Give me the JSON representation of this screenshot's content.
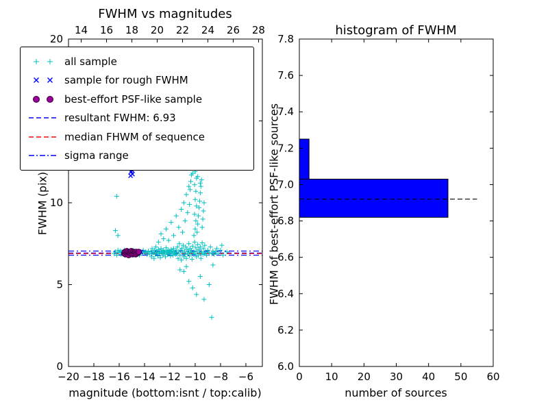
{
  "figure": {
    "background": "#ffffff",
    "frame_color": "#000000",
    "text_color": "#000000"
  },
  "chart_data": [
    {
      "type": "scatter",
      "title": "FWHM vs magnitudes",
      "xlabel": "magnitude (bottom:isnt / top:calib)",
      "ylabel": "FWHM (pix)",
      "x_range": [
        -20,
        -4.7
      ],
      "x_top_range": [
        13.0,
        28.3
      ],
      "y_range": [
        0,
        20
      ],
      "x_ticks": [
        -20,
        -18,
        -16,
        -14,
        -12,
        -10,
        -8,
        -6
      ],
      "x_top_ticks": [
        14,
        16,
        18,
        20,
        22,
        24,
        26,
        28
      ],
      "y_ticks": [
        0,
        5,
        10,
        15,
        20
      ],
      "y_tick_decimals": 0,
      "grid": false,
      "legend_position": "upper left",
      "legend": [
        {
          "label": "all sample",
          "type": "scatter-plus",
          "color": "#00bfbf"
        },
        {
          "label": "sample for rough FWHM",
          "type": "scatter-x",
          "color": "#0000ff"
        },
        {
          "label": "best-effort PSF-like sample",
          "type": "scatter-circle",
          "color": "#990099"
        },
        {
          "label": "resultant FWHM: 6.93",
          "type": "line-dashed",
          "color": "#0000ff"
        },
        {
          "label": "median FHWM of sequence",
          "type": "line-dashed",
          "color": "#ff0000"
        },
        {
          "label": "sigma range",
          "type": "line-dashdot",
          "color": "#0000ff"
        }
      ],
      "hlines": [
        {
          "name": "resultant-fwhm",
          "value": 6.93,
          "style": "dashed",
          "color": "#0000ff"
        },
        {
          "name": "median-fwhm-of-sequence",
          "value": 6.9,
          "style": "dashed",
          "color": "#ff0000"
        },
        {
          "name": "sigma-range-low",
          "value": 6.8,
          "style": "dashdot",
          "color": "#0000ff"
        },
        {
          "name": "sigma-range-high",
          "value": 7.05,
          "style": "dashdot",
          "color": "#0000ff"
        }
      ],
      "series": [
        {
          "name": "all sample",
          "marker": "plus",
          "color": "#00bfbf",
          "points": [
            [
              -16.4,
              6.9
            ],
            [
              -16.3,
              7.0
            ],
            [
              -16.2,
              6.8
            ],
            [
              -16.1,
              7.1
            ],
            [
              -16.0,
              6.95
            ],
            [
              -15.9,
              7.05
            ],
            [
              -15.85,
              6.85
            ],
            [
              -15.8,
              7.0
            ],
            [
              -15.7,
              6.9
            ],
            [
              -15.6,
              7.1
            ],
            [
              -15.55,
              6.8
            ],
            [
              -15.5,
              7.0
            ],
            [
              -15.4,
              6.95
            ],
            [
              -15.3,
              7.05
            ],
            [
              -15.2,
              6.9
            ],
            [
              -15.1,
              7.0
            ],
            [
              -15.0,
              6.85
            ],
            [
              -14.9,
              7.1
            ],
            [
              -14.8,
              6.95
            ],
            [
              -14.7,
              7.0
            ],
            [
              -14.6,
              6.9
            ],
            [
              -14.5,
              7.05
            ],
            [
              -14.4,
              6.8
            ],
            [
              -14.3,
              7.0
            ],
            [
              -14.2,
              6.9
            ],
            [
              -14.1,
              7.1
            ],
            [
              -14.0,
              6.95
            ],
            [
              -13.9,
              7.0
            ],
            [
              -13.8,
              6.85
            ],
            [
              -13.7,
              7.05
            ],
            [
              -13.6,
              6.9
            ],
            [
              -13.5,
              7.0
            ],
            [
              -13.45,
              6.7
            ],
            [
              -13.4,
              7.2
            ],
            [
              -13.35,
              6.9
            ],
            [
              -13.3,
              7.0
            ],
            [
              -13.25,
              6.6
            ],
            [
              -13.2,
              7.1
            ],
            [
              -13.15,
              6.85
            ],
            [
              -13.1,
              7.3
            ],
            [
              -13.05,
              6.95
            ],
            [
              -13.0,
              7.0
            ],
            [
              -12.95,
              6.75
            ],
            [
              -12.9,
              7.15
            ],
            [
              -12.85,
              6.9
            ],
            [
              -12.8,
              7.0
            ],
            [
              -12.75,
              6.65
            ],
            [
              -12.7,
              7.2
            ],
            [
              -12.65,
              6.95
            ],
            [
              -12.6,
              7.05
            ],
            [
              -12.55,
              6.8
            ],
            [
              -12.5,
              7.1
            ],
            [
              -12.45,
              6.9
            ],
            [
              -12.4,
              7.0
            ],
            [
              -12.35,
              6.7
            ],
            [
              -12.3,
              7.25
            ],
            [
              -12.25,
              6.95
            ],
            [
              -12.2,
              7.05
            ],
            [
              -12.15,
              6.85
            ],
            [
              -12.1,
              7.1
            ],
            [
              -12.05,
              6.9
            ],
            [
              -12.0,
              7.0
            ],
            [
              -11.95,
              6.75
            ],
            [
              -11.9,
              7.15
            ],
            [
              -11.85,
              6.95
            ],
            [
              -11.8,
              7.05
            ],
            [
              -11.75,
              6.8
            ],
            [
              -11.7,
              7.2
            ],
            [
              -11.65,
              6.9
            ],
            [
              -11.6,
              7.0
            ],
            [
              -11.55,
              6.85
            ],
            [
              -11.5,
              7.1
            ],
            [
              -11.45,
              6.9
            ],
            [
              -11.4,
              7.3
            ],
            [
              -11.35,
              6.6
            ],
            [
              -11.3,
              7.0
            ],
            [
              -11.25,
              7.5
            ],
            [
              -11.2,
              6.8
            ],
            [
              -11.15,
              7.1
            ],
            [
              -11.1,
              6.5
            ],
            [
              -11.05,
              7.2
            ],
            [
              -11.0,
              6.95
            ],
            [
              -10.95,
              7.4
            ],
            [
              -10.9,
              6.7
            ],
            [
              -10.85,
              7.05
            ],
            [
              -10.8,
              6.85
            ],
            [
              -10.75,
              7.3
            ],
            [
              -10.7,
              6.6
            ],
            [
              -10.65,
              7.15
            ],
            [
              -10.6,
              6.9
            ],
            [
              -10.55,
              7.0
            ],
            [
              -10.5,
              7.5
            ],
            [
              -10.45,
              6.75
            ],
            [
              -10.4,
              7.2
            ],
            [
              -10.35,
              6.95
            ],
            [
              -10.3,
              7.1
            ],
            [
              -10.25,
              6.55
            ],
            [
              -10.2,
              7.35
            ],
            [
              -10.15,
              6.85
            ],
            [
              -10.1,
              7.0
            ],
            [
              -10.05,
              7.6
            ],
            [
              -10.0,
              6.9
            ],
            [
              -9.95,
              7.25
            ],
            [
              -9.9,
              6.7
            ],
            [
              -9.85,
              7.05
            ],
            [
              -9.8,
              7.45
            ],
            [
              -9.75,
              6.8
            ],
            [
              -9.7,
              7.15
            ],
            [
              -9.65,
              6.95
            ],
            [
              -9.6,
              7.3
            ],
            [
              -9.55,
              6.6
            ],
            [
              -9.5,
              7.0
            ],
            [
              -9.45,
              7.55
            ],
            [
              -9.4,
              6.85
            ],
            [
              -9.35,
              7.2
            ],
            [
              -9.3,
              6.9
            ],
            [
              -9.25,
              7.4
            ],
            [
              -9.2,
              7.0
            ],
            [
              -9.1,
              6.8
            ],
            [
              -9.0,
              7.1
            ],
            [
              -8.9,
              6.95
            ],
            [
              -8.8,
              7.3
            ],
            [
              -8.7,
              6.9
            ],
            [
              -8.6,
              7.05
            ],
            [
              -8.5,
              6.85
            ],
            [
              -8.4,
              7.0
            ],
            [
              -10.1,
              8.0
            ],
            [
              -10.0,
              8.4
            ],
            [
              -9.95,
              8.9
            ],
            [
              -10.05,
              9.3
            ],
            [
              -9.9,
              9.8
            ],
            [
              -10.0,
              10.2
            ],
            [
              -9.95,
              10.7
            ],
            [
              -10.05,
              11.1
            ],
            [
              -9.9,
              11.5
            ],
            [
              -10.0,
              11.9
            ],
            [
              -9.85,
              8.2
            ],
            [
              -9.8,
              8.7
            ],
            [
              -9.75,
              9.2
            ],
            [
              -9.7,
              9.7
            ],
            [
              -9.65,
              10.1
            ],
            [
              -9.6,
              10.6
            ],
            [
              -9.55,
              11.0
            ],
            [
              -9.5,
              11.4
            ],
            [
              -9.45,
              8.5
            ],
            [
              -9.4,
              9.0
            ],
            [
              -9.35,
              9.5
            ],
            [
              -9.3,
              10.0
            ],
            [
              -12.9,
              7.6
            ],
            [
              -12.7,
              8.1
            ],
            [
              -12.5,
              7.8
            ],
            [
              -12.3,
              8.4
            ],
            [
              -12.1,
              7.7
            ],
            [
              -11.9,
              8.8
            ],
            [
              -11.7,
              8.0
            ],
            [
              -11.5,
              9.2
            ],
            [
              -11.3,
              8.5
            ],
            [
              -11.1,
              9.6
            ],
            [
              -11.0,
              8.2
            ],
            [
              -10.9,
              10.0
            ],
            [
              -10.8,
              8.9
            ],
            [
              -10.7,
              10.5
            ],
            [
              -10.6,
              9.4
            ],
            [
              -10.5,
              11.0
            ],
            [
              -10.45,
              9.9
            ],
            [
              -10.4,
              10.8
            ],
            [
              -10.35,
              11.3
            ],
            [
              -10.3,
              11.7
            ],
            [
              -10.2,
              11.8
            ],
            [
              -9.8,
              11.6
            ],
            [
              -9.6,
              11.2
            ],
            [
              -10.9,
              5.8
            ],
            [
              -10.5,
              5.2
            ],
            [
              -10.2,
              4.8
            ],
            [
              -9.9,
              4.4
            ],
            [
              -9.6,
              5.5
            ],
            [
              -9.3,
              4.1
            ],
            [
              -8.7,
              3.0
            ],
            [
              -10.7,
              6.1
            ],
            [
              -11.2,
              5.9
            ],
            [
              -8.9,
              5.0
            ],
            [
              -8.6,
              6.2
            ],
            [
              -16.2,
              10.4
            ],
            [
              -16.3,
              8.3
            ],
            [
              -16.1,
              8.0
            ],
            [
              -8.2,
              6.9
            ],
            [
              -8.0,
              7.1
            ],
            [
              -7.8,
              6.8
            ],
            [
              -7.5,
              7.0
            ],
            [
              -7.9,
              7.4
            ],
            [
              -8.3,
              7.2
            ]
          ]
        },
        {
          "name": "sample for rough FWHM",
          "marker": "x",
          "color": "#0000ff",
          "points": [
            [
              -15.05,
              11.9
            ],
            [
              -14.95,
              11.75
            ],
            [
              -15.1,
              11.65
            ],
            [
              -15.0,
              12.0
            ],
            [
              -15.35,
              7.0
            ],
            [
              -15.1,
              6.95
            ],
            [
              -14.8,
              7.05
            ],
            [
              -14.55,
              6.9
            ],
            [
              -14.3,
              7.0
            ]
          ]
        },
        {
          "name": "best-effort PSF-like sample",
          "marker": "circle",
          "color": "#990099",
          "edge": "#3a003a",
          "points": [
            [
              -15.6,
              6.9
            ],
            [
              -15.55,
              7.0
            ],
            [
              -15.5,
              6.85
            ],
            [
              -15.45,
              6.95
            ],
            [
              -15.4,
              7.05
            ],
            [
              -15.35,
              6.9
            ],
            [
              -15.3,
              7.0
            ],
            [
              -15.25,
              6.8
            ],
            [
              -15.2,
              6.95
            ],
            [
              -15.15,
              7.0
            ],
            [
              -15.1,
              6.9
            ],
            [
              -15.05,
              7.05
            ],
            [
              -15.0,
              6.95
            ],
            [
              -14.95,
              6.85
            ],
            [
              -14.9,
              7.0
            ],
            [
              -14.85,
              6.9
            ],
            [
              -14.8,
              7.0
            ],
            [
              -14.75,
              6.95
            ],
            [
              -14.7,
              6.85
            ],
            [
              -14.65,
              7.0
            ],
            [
              -14.6,
              6.9
            ],
            [
              -14.5,
              6.95
            ],
            [
              -14.45,
              7.0
            ]
          ]
        }
      ]
    },
    {
      "type": "bar",
      "orientation": "horizontal",
      "title": "histogram of FWHM",
      "xlabel": "number of sources",
      "ylabel": "FWHM of best-effort PSF-like sources",
      "x_range": [
        0,
        60
      ],
      "y_range": [
        6.0,
        7.8
      ],
      "x_ticks": [
        0,
        10,
        20,
        30,
        40,
        50,
        60
      ],
      "y_ticks": [
        6.0,
        6.2,
        6.4,
        6.6,
        6.8,
        7.0,
        7.2,
        7.4,
        7.6,
        7.8
      ],
      "y_tick_decimals": 1,
      "grid": false,
      "bar_color": "#0000ff",
      "bar_edge": "#000000",
      "bins": [
        {
          "fwhm_from": 6.82,
          "fwhm_to": 7.03,
          "count": 46
        },
        {
          "fwhm_from": 7.03,
          "fwhm_to": 7.25,
          "count": 3
        }
      ],
      "hlines": [
        {
          "name": "median-fwhm",
          "value": 6.92,
          "style": "dashed",
          "color": "#000000",
          "x_from": 0,
          "x_to": 55
        }
      ]
    }
  ]
}
